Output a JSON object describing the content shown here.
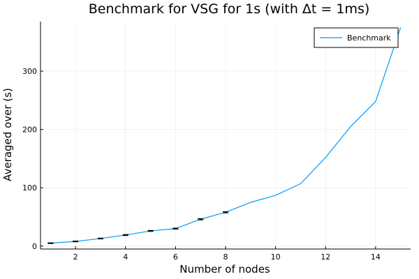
{
  "chart_data": {
    "type": "line",
    "title": "Benchmark for VSG  for 1s (with Δt = 1ms)",
    "xlabel": "Number of nodes",
    "ylabel": "Averaged over (s)",
    "xlim": [
      0.6,
      15.4
    ],
    "ylim": [
      -5,
      385
    ],
    "xticks": [
      2,
      4,
      6,
      8,
      10,
      12,
      14
    ],
    "yticks": [
      0,
      100,
      200,
      300
    ],
    "grid": true,
    "legend_position": "top-right",
    "series": [
      {
        "name": "Benchmark",
        "color": "#009af9",
        "x": [
          1,
          2,
          3,
          4,
          5,
          6,
          7,
          8,
          9,
          10,
          11,
          12,
          13,
          14,
          15
        ],
        "y": [
          5,
          8,
          13,
          19,
          26,
          30,
          46,
          58,
          75,
          87,
          107,
          152,
          205,
          248,
          375
        ],
        "error": [
          0.6,
          0.6,
          0.6,
          0.8,
          0.8,
          0.8,
          1.0,
          1.0,
          0,
          0,
          0,
          0,
          0,
          0,
          0
        ]
      }
    ]
  }
}
